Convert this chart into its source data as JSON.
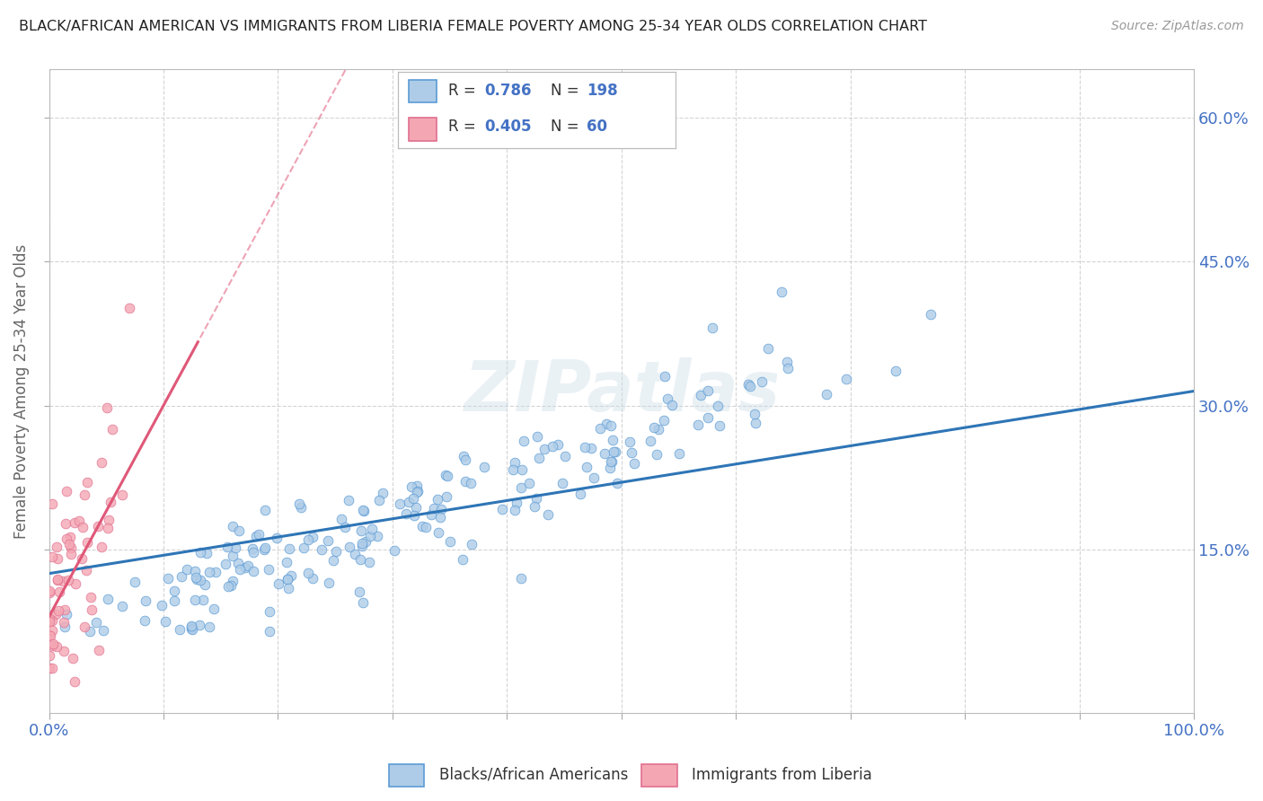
{
  "title": "BLACK/AFRICAN AMERICAN VS IMMIGRANTS FROM LIBERIA FEMALE POVERTY AMONG 25-34 YEAR OLDS CORRELATION CHART",
  "source": "Source: ZipAtlas.com",
  "ylabel": "Female Poverty Among 25-34 Year Olds",
  "xlim": [
    0,
    1.0
  ],
  "ylim": [
    -0.02,
    0.65
  ],
  "ytick_positions": [
    0.15,
    0.3,
    0.45,
    0.6
  ],
  "ytick_labels": [
    "15.0%",
    "30.0%",
    "45.0%",
    "60.0%"
  ],
  "blue_R": 0.786,
  "blue_N": 198,
  "pink_R": 0.405,
  "pink_N": 60,
  "blue_color": "#aecce8",
  "blue_edge_color": "#5b9bd5",
  "blue_line_color": "#2e75b6",
  "pink_color": "#f4a7b3",
  "pink_edge_color": "#e07090",
  "pink_line_color": "#e05878",
  "watermark": "ZIPatlas",
  "legend_label_blue": "Blacks/African Americans",
  "legend_label_pink": "Immigrants from Liberia",
  "background_color": "#ffffff",
  "grid_color": "#d0d0d0",
  "title_color": "#222222",
  "axis_label_color": "#666666",
  "tick_label_color": "#4472c4",
  "seed": 99,
  "blue_slope": 0.19,
  "blue_intercept": 0.125,
  "pink_slope": 2.2,
  "pink_intercept": 0.08
}
